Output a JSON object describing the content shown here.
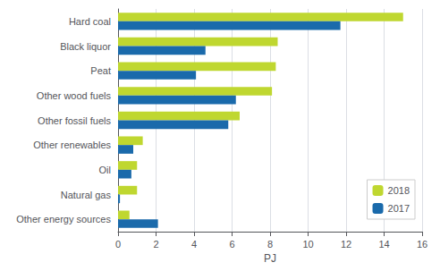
{
  "chart_data": {
    "type": "bar",
    "orientation": "horizontal",
    "categories": [
      "Other energy sources",
      "Natural gas",
      "Oil",
      "Other renewables",
      "Other fossil fuels",
      "Other wood fuels",
      "Peat",
      "Black liquor",
      "Hard coal"
    ],
    "series": [
      {
        "name": "2018",
        "color": "#bfd730",
        "values": [
          0.6,
          1.0,
          1.0,
          1.3,
          6.4,
          8.1,
          8.3,
          8.4,
          15.0
        ]
      },
      {
        "name": "2017",
        "color": "#1a6aab",
        "values": [
          2.1,
          0.1,
          0.7,
          0.8,
          5.8,
          6.2,
          4.1,
          4.6,
          11.7
        ]
      }
    ],
    "xlabel": "PJ",
    "xlim": [
      0,
      16
    ],
    "xticks": [
      0,
      2,
      4,
      6,
      8,
      10,
      12,
      14,
      16
    ],
    "grid": true,
    "legend": "lower right"
  }
}
